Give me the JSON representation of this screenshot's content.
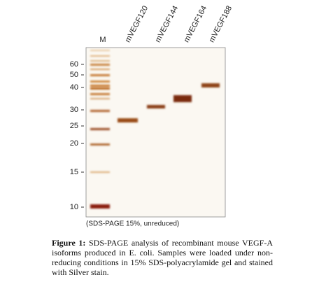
{
  "figure": {
    "lanes": [
      "M",
      "mVEGF120",
      "mVEGF144",
      "mVEGF164",
      "mVEGF188"
    ],
    "markers": [
      "60",
      "50",
      "40",
      "30",
      "25",
      "20",
      "15",
      "10"
    ],
    "note": "(SDS-PAGE 15%, unreduced)",
    "caption": {
      "label": "Figure 1:",
      "text": "SDS-PAGE analysis of recombinant mouse VEGF-A isoforms produced in E. coli. Samples were loaded under non-reducing conditions in 15% SDS-polyacrylamide gel and stained with Silver stain."
    }
  }
}
